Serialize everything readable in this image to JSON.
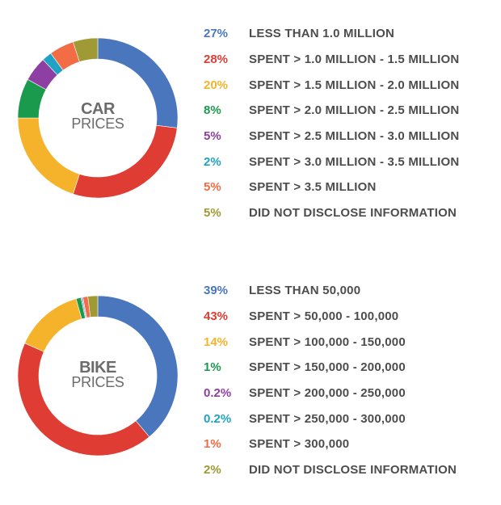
{
  "chart_data": [
    {
      "type": "pie",
      "title": "CAR",
      "subtitle": "PRICES",
      "slices": [
        {
          "pct_label": "27%",
          "label": "LESS THAN 1.0 MILLION",
          "value": 27,
          "color": "#4a76be"
        },
        {
          "pct_label": "28%",
          "label": "SPENT > 1.0 MILLION - 1.5 MILLION",
          "value": 28,
          "color": "#df3c34"
        },
        {
          "pct_label": "20%",
          "label": "SPENT > 1.5 MILLION - 2.0 MILLION",
          "value": 20,
          "color": "#f4b32b"
        },
        {
          "pct_label": "8%",
          "label": "SPENT > 2.0 MILLION - 2.5 MILLION",
          "value": 8,
          "color": "#1a9a4c"
        },
        {
          "pct_label": "5%",
          "label": "SPENT > 2.5 MILLION - 3.0 MILLION",
          "value": 5,
          "color": "#8e3fa3"
        },
        {
          "pct_label": "2%",
          "label": "SPENT > 3.0 MILLION - 3.5 MILLION",
          "value": 2,
          "color": "#1fa3c4"
        },
        {
          "pct_label": "5%",
          "label": "SPENT > 3.5 MILLION",
          "value": 5,
          "color": "#f26c45"
        },
        {
          "pct_label": "5%",
          "label": "DID NOT DISCLOSE INFORMATION",
          "value": 5,
          "color": "#9f9a35"
        }
      ]
    },
    {
      "type": "pie",
      "title": "BIKE",
      "subtitle": "PRICES",
      "slices": [
        {
          "pct_label": "39%",
          "label": "LESS THAN 50,000",
          "value": 39,
          "color": "#4a76be"
        },
        {
          "pct_label": "43%",
          "label": "SPENT > 50,000 - 100,000",
          "value": 43,
          "color": "#df3c34"
        },
        {
          "pct_label": "14%",
          "label": "SPENT > 100,000 - 150,000",
          "value": 14,
          "color": "#f4b32b"
        },
        {
          "pct_label": "1%",
          "label": "SPENT > 150,000 - 200,000",
          "value": 1,
          "color": "#1a9a4c"
        },
        {
          "pct_label": "0.2%",
          "label": "SPENT > 200,000 - 250,000",
          "value": 0.2,
          "color": "#8e3fa3"
        },
        {
          "pct_label": "0.2%",
          "label": "SPENT > 250,000 - 300,000",
          "value": 0.2,
          "color": "#1fa3c4"
        },
        {
          "pct_label": "1%",
          "label": "SPENT > 300,000",
          "value": 1,
          "color": "#f26c45"
        },
        {
          "pct_label": "2%",
          "label": "DID NOT DISCLOSE INFORMATION",
          "value": 2,
          "color": "#9f9a35"
        }
      ]
    }
  ]
}
